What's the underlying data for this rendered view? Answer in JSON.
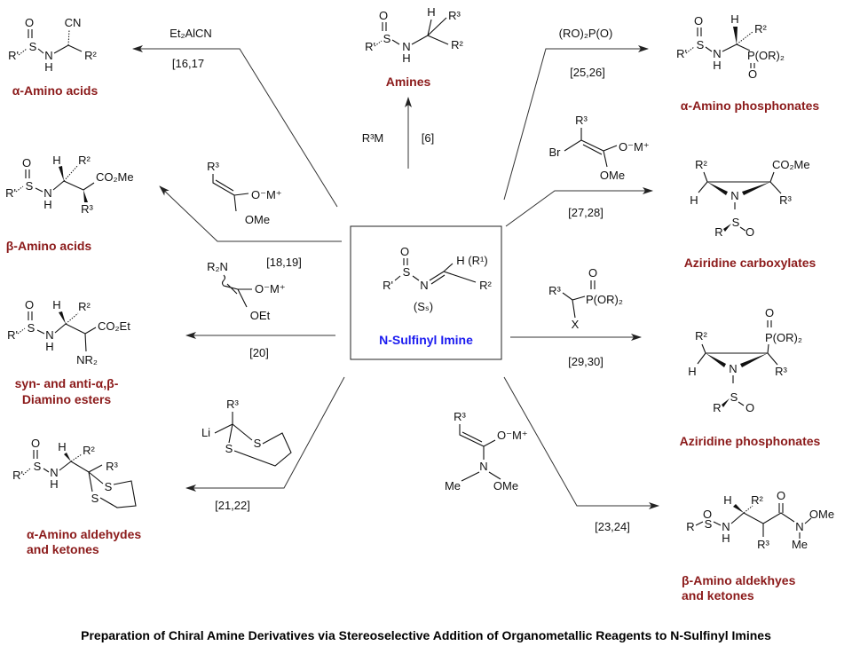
{
  "title": "Preparation of Chiral Amine Derivatives via Stereoselective Addition of Organometallic Reagents to N-Sulfinyl Imines",
  "center": {
    "atoms": [
      "O",
      "S",
      "R'",
      "N",
      "H (R¹)",
      "R²",
      "(Sₛ)"
    ],
    "label": "N-Sulfinyl Imine"
  },
  "colors": {
    "product_label": "#8b1a1a",
    "center_label": "#1c1cf0"
  },
  "products": {
    "alpha_amino_acids": {
      "label": "α-Amino acids",
      "atoms": [
        "O",
        "S",
        "R'",
        "N",
        "H",
        "CN",
        "R²"
      ]
    },
    "amines": {
      "label": "Amines",
      "atoms": [
        "O",
        "S",
        "R'",
        "N",
        "H",
        "H",
        "R³",
        "R²"
      ]
    },
    "alpha_amino_phosphonates": {
      "label": "α-Amino phosphonates",
      "atoms": [
        "O",
        "S",
        "R'",
        "N",
        "H",
        "H",
        "R²",
        "P(OR)₂",
        "O"
      ]
    },
    "beta_amino_acids": {
      "label": "β-Amino acids",
      "atoms": [
        "O",
        "S",
        "R'",
        "N",
        "H",
        "H",
        "R²",
        "CO₂Me",
        "R³"
      ]
    },
    "aziridine_carboxylates": {
      "label": "Aziridine carboxylates",
      "atoms": [
        "R²",
        "CO₂Me",
        "H",
        "N",
        "R³",
        "S",
        "R",
        "O"
      ]
    },
    "diamino_esters": {
      "label_line1": "syn- and anti-α,β-",
      "label_line2": "Diamino esters",
      "atoms": [
        "O",
        "S",
        "R'",
        "N",
        "H",
        "H",
        "R²",
        "CO₂Et",
        "NR₂"
      ]
    },
    "aziridine_phosphonates": {
      "label": "Aziridine phosphonates",
      "atoms": [
        "O",
        "P(OR)₂",
        "R²",
        "H",
        "N",
        "R³",
        "S",
        "R",
        "O"
      ]
    },
    "alpha_amino_aldehydes": {
      "label_line1": "α-Amino aldehydes",
      "label_line2": "and ketones",
      "atoms": [
        "O",
        "S",
        "R'",
        "N",
        "H",
        "H",
        "R²",
        "R³",
        "S",
        "S"
      ]
    },
    "beta_amino_aldehydes": {
      "label_line1": "β-Amino aldekhyes",
      "label_line2": "and ketones",
      "atoms": [
        "O",
        "S",
        "R",
        "N",
        "H",
        "H",
        "R²",
        "R³",
        "O",
        "N",
        "OMe",
        "Me"
      ]
    }
  },
  "reactions": {
    "alpha_amino_acids": {
      "reagent": "Et₂AlCN",
      "ref": "[16,17"
    },
    "amines": {
      "reagent": "R³M",
      "ref": "[6]"
    },
    "alpha_amino_phosphonates": {
      "reagent": "(RO)₂P(O)",
      "ref": "[25,26]"
    },
    "beta_amino_acids": {
      "reagent_atoms": [
        "R³",
        "O⁻M⁺",
        "OMe"
      ],
      "ref": "[18,19]"
    },
    "aziridine_carboxylates": {
      "reagent_atoms": [
        "R³",
        "Br",
        "O⁻M⁺",
        "OMe"
      ],
      "ref": "[27,28]"
    },
    "diamino_esters": {
      "reagent_atoms": [
        "R₂N",
        "O⁻M⁺",
        "OEt"
      ],
      "ref": "[20]"
    },
    "aziridine_phosphonates": {
      "reagent_atoms": [
        "O",
        "R³",
        "P(OR)₂",
        "X"
      ],
      "ref": "[29,30]"
    },
    "alpha_amino_aldehydes": {
      "reagent_atoms": [
        "R³",
        "Li",
        "S",
        "S"
      ],
      "ref": "[21,22]"
    },
    "beta_amino_aldehydes": {
      "reagent_atoms": [
        "R³",
        "O⁻M⁺",
        "N",
        "Me",
        "OMe"
      ],
      "ref": "[23,24]"
    }
  }
}
